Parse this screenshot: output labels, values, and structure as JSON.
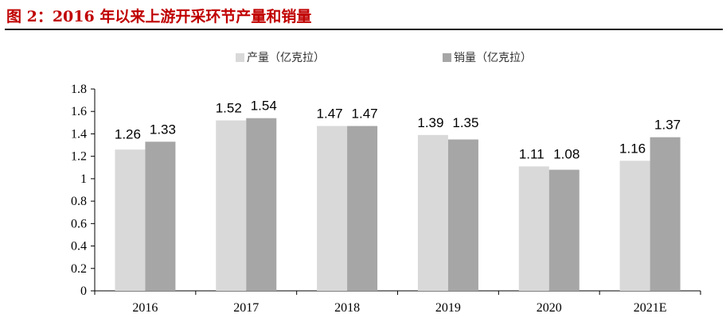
{
  "chart_data": {
    "type": "bar",
    "title": "图 2：2016 年以来上游开采环节产量和销量",
    "xlabel": "",
    "ylabel": "",
    "categories": [
      "2016",
      "2017",
      "2018",
      "2019",
      "2020",
      "2021E"
    ],
    "series": [
      {
        "name": "产量（亿克拉）",
        "values": [
          1.26,
          1.52,
          1.47,
          1.39,
          1.11,
          1.16
        ],
        "color": "#d9d9d9"
      },
      {
        "name": "销量（亿克拉）",
        "values": [
          1.33,
          1.54,
          1.47,
          1.35,
          1.08,
          1.37
        ],
        "color": "#a6a6a6"
      }
    ],
    "ylim": [
      0,
      1.8
    ],
    "yticks": [
      "0",
      "0.2",
      "0.4",
      "0.6",
      "0.8",
      "1",
      "1.2",
      "1.4",
      "1.6",
      "1.8"
    ],
    "grid": false,
    "legend": "top-center"
  }
}
